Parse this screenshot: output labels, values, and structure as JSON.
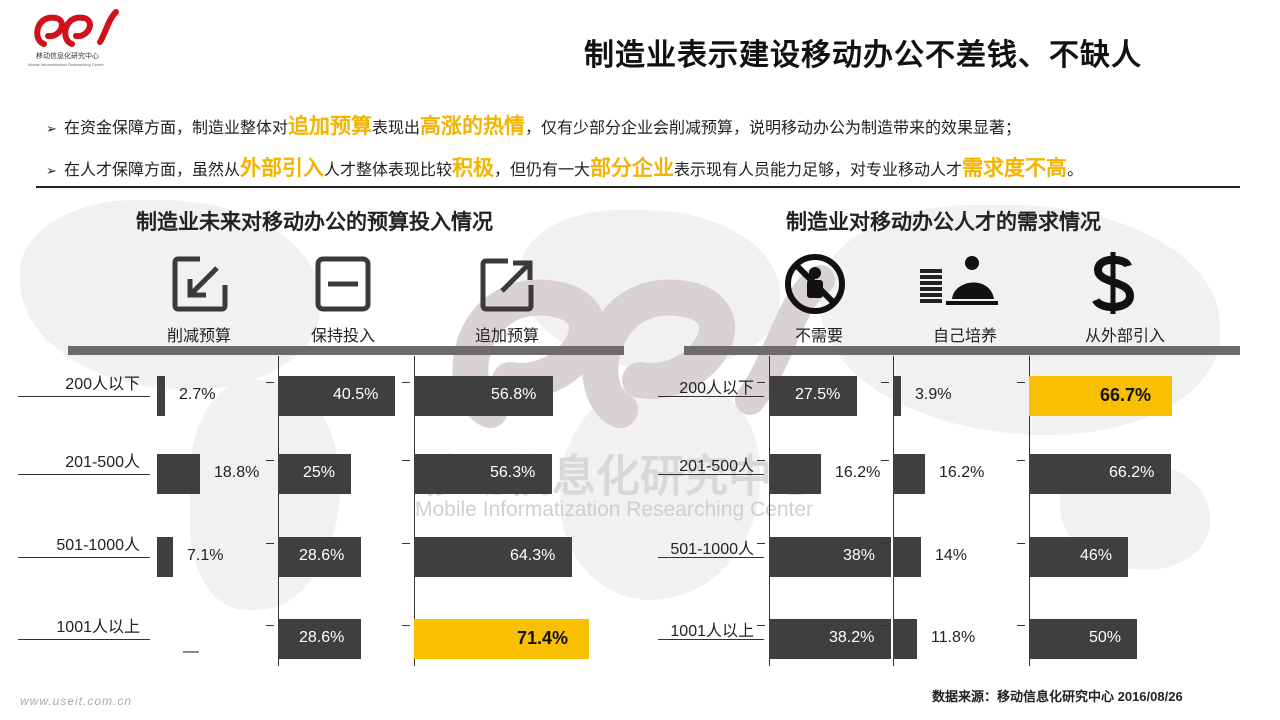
{
  "header": {
    "logo_name": "移动信息化研究中心",
    "logo_sub": "Mobile Informatization Researching Center",
    "title": "制造业表示建设移动办公不差钱、不缺人"
  },
  "bullets": [
    {
      "parts": [
        {
          "t": "在资金保障方面，制造业整体对",
          "hl": false
        },
        {
          "t": "追加预算",
          "hl": true
        },
        {
          "t": "表现出",
          "hl": false
        },
        {
          "t": "高涨的热情",
          "hl": true
        },
        {
          "t": "，仅有少部分企业会削减预算，说明移动办公为制造带来的效果显著；",
          "hl": false
        }
      ]
    },
    {
      "parts": [
        {
          "t": "在人才保障方面，虽然从",
          "hl": false
        },
        {
          "t": "外部引入",
          "hl": true
        },
        {
          "t": "人才整体表现比较",
          "hl": false
        },
        {
          "t": "积极",
          "hl": true
        },
        {
          "t": "，但仍有一大",
          "hl": false
        },
        {
          "t": "部分企业",
          "hl": true
        },
        {
          "t": "表示现有人员能力足够，对专业移动人才",
          "hl": false
        },
        {
          "t": "需求度不高",
          "hl": true
        },
        {
          "t": "。",
          "hl": false
        }
      ]
    }
  ],
  "watermark": {
    "cn": "移动信息化研究中心",
    "en": "Mobile  Informatization  Researching  Center"
  },
  "chart_data": [
    {
      "type": "bar",
      "title": "制造业未来对移动办公的预算投入情况",
      "categories": [
        "200人以下",
        "201-500人",
        "501-1000人",
        "1001人以上"
      ],
      "series": [
        {
          "name": "削减预算",
          "values": [
            2.7,
            18.8,
            7.1,
            null
          ],
          "labels": [
            "2.7%",
            "18.8%",
            "7.1%",
            "—"
          ]
        },
        {
          "name": "保持投入",
          "values": [
            40.5,
            25,
            28.6,
            28.6
          ],
          "labels": [
            "40.5%",
            "25%",
            "28.6%",
            "28.6%"
          ]
        },
        {
          "name": "追加预算",
          "values": [
            56.8,
            56.3,
            64.3,
            71.4
          ],
          "labels": [
            "56.8%",
            "56.3%",
            "64.3%",
            "71.4%"
          ]
        }
      ],
      "highlight": {
        "series": 2,
        "category": 3
      },
      "colors": {
        "bar": "#3f3f3f",
        "highlight": "#f8c000",
        "band": "#6b6b6b"
      }
    },
    {
      "type": "bar",
      "title": "制造业对移动办公人才的需求情况",
      "categories": [
        "200人以下",
        "201-500人",
        "501-1000人",
        "1001人以上"
      ],
      "series": [
        {
          "name": "不需要",
          "values": [
            27.5,
            16.2,
            38,
            38.2
          ],
          "labels": [
            "27.5%",
            "16.2%",
            "38%",
            "38.2%"
          ]
        },
        {
          "name": "自己培养",
          "values": [
            3.9,
            16.2,
            14,
            11.8
          ],
          "labels": [
            "3.9%",
            "16.2%",
            "14%",
            "11.8%"
          ]
        },
        {
          "name": "从外部引入",
          "values": [
            66.7,
            66.2,
            46,
            50
          ],
          "labels": [
            "66.7%",
            "66.2%",
            "46%",
            "50%"
          ]
        }
      ],
      "highlight": {
        "series": 2,
        "category": 0
      },
      "colors": {
        "bar": "#3f3f3f",
        "highlight": "#f8c000",
        "band": "#6b6b6b"
      }
    }
  ],
  "footer": {
    "source": "数据来源：移动信息化研究中心 2016/08/26",
    "url": "www.useit.com.cn"
  },
  "icons": {
    "cut": "arrow-down-left-box-icon",
    "keep": "minus-box-icon",
    "add": "arrow-up-right-box-icon",
    "no_need": "no-person-icon",
    "train": "person-at-desk-icon",
    "external": "dollar-sign-icon"
  }
}
